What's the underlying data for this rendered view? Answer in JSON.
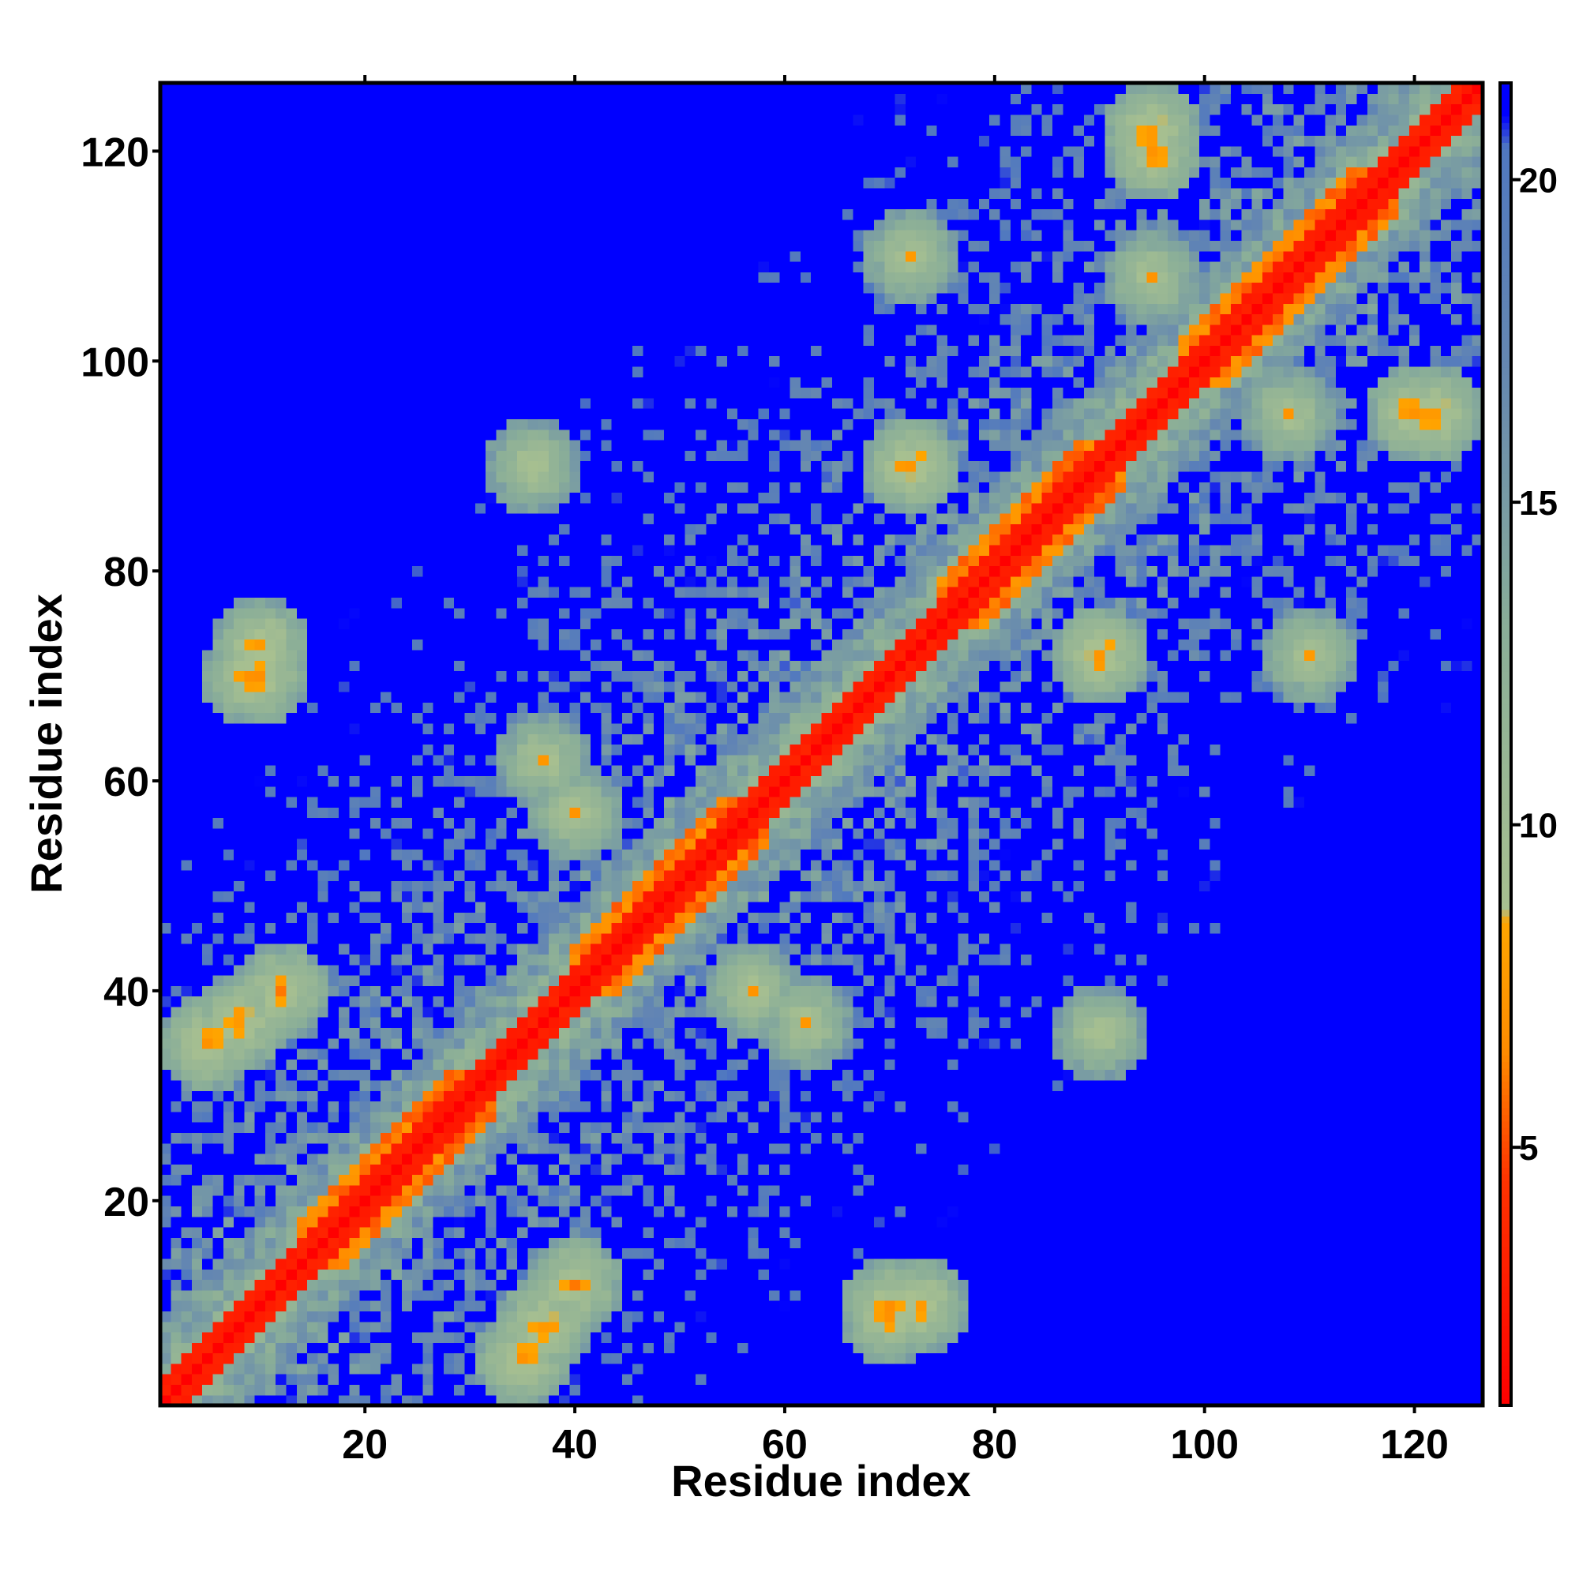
{
  "chart_data": {
    "type": "heatmap",
    "title": "",
    "xlabel": "Residue index",
    "ylabel": "Residue index",
    "n": 126,
    "xlim": [
      0.5,
      126.5
    ],
    "ylim": [
      0.5,
      126.5
    ],
    "x_ticks": [
      "20",
      "40",
      "60",
      "80",
      "100",
      "120"
    ],
    "x_tick_values": [
      20,
      40,
      60,
      80,
      100,
      120
    ],
    "y_ticks": [
      "20",
      "40",
      "60",
      "80",
      "100",
      "120"
    ],
    "y_tick_values": [
      20,
      40,
      60,
      80,
      100,
      120
    ],
    "colorbar": {
      "range": [
        1,
        21.5
      ],
      "ticks": [
        "5",
        "10",
        "15",
        "20"
      ],
      "tick_values": [
        5,
        10,
        15,
        20
      ],
      "colors": [
        {
          "value": 1,
          "color": "#ff0000"
        },
        {
          "value": 4.5,
          "color": "#ff3300"
        },
        {
          "value": 6.5,
          "color": "#ff8c00"
        },
        {
          "value": 8.5,
          "color": "#ffa500"
        },
        {
          "value": 8.7,
          "color": "#a8c090"
        },
        {
          "value": 13,
          "color": "#8aae98"
        },
        {
          "value": 17,
          "color": "#6688b0"
        },
        {
          "value": 20.5,
          "color": "#5078c0"
        },
        {
          "value": 21,
          "color": "#0000ff"
        }
      ]
    },
    "grid": false,
    "legend": "colorbar-right",
    "description_of_data": "Symmetric residue–residue distance map: diagonal ~1–4 (red), near-contacts ~5–8 (orange), mid distances ~9–19 (green/grey-blue), far >=21 (blue).",
    "key_features": [
      {
        "type": "diagonal",
        "from": 1,
        "to": 126,
        "value": 2
      },
      {
        "type": "helix-band",
        "region": [
          14,
          32
        ],
        "value": 6
      },
      {
        "type": "helix-band",
        "region": [
          40,
          58
        ],
        "value": 6
      },
      {
        "type": "helix-band",
        "region": [
          75,
          92
        ],
        "value": 6
      },
      {
        "type": "helix-band",
        "region": [
          98,
          118
        ],
        "value": 6
      },
      {
        "type": "contact",
        "i": 5,
        "j": 35,
        "value": 6
      },
      {
        "type": "contact",
        "i": 9,
        "j": 70,
        "value": 6
      },
      {
        "type": "contact",
        "i": 12,
        "j": 40,
        "value": 6
      },
      {
        "type": "contact",
        "i": 8,
        "j": 37,
        "value": 6
      },
      {
        "type": "contact",
        "i": 10,
        "j": 70,
        "value": 6
      },
      {
        "type": "contact",
        "i": 10,
        "j": 73,
        "value": 6
      },
      {
        "type": "contact",
        "i": 37,
        "j": 62,
        "value": 7
      },
      {
        "type": "contact",
        "i": 40,
        "j": 57,
        "value": 7
      },
      {
        "type": "contact",
        "i": 36,
        "j": 90,
        "value": 7
      },
      {
        "type": "contact",
        "i": 72,
        "j": 90,
        "value": 6
      },
      {
        "type": "contact",
        "i": 90,
        "j": 72,
        "value": 6
      },
      {
        "type": "contact",
        "i": 95,
        "j": 120,
        "value": 6
      },
      {
        "type": "contact",
        "i": 95,
        "j": 108,
        "value": 7
      },
      {
        "type": "contact",
        "i": 122,
        "j": 95,
        "value": 6
      },
      {
        "type": "contact",
        "i": 110,
        "j": 72,
        "value": 7
      },
      {
        "type": "contact",
        "i": 72,
        "j": 10,
        "value": 7
      },
      {
        "type": "contact",
        "i": 57,
        "j": 40,
        "value": 7
      }
    ]
  }
}
